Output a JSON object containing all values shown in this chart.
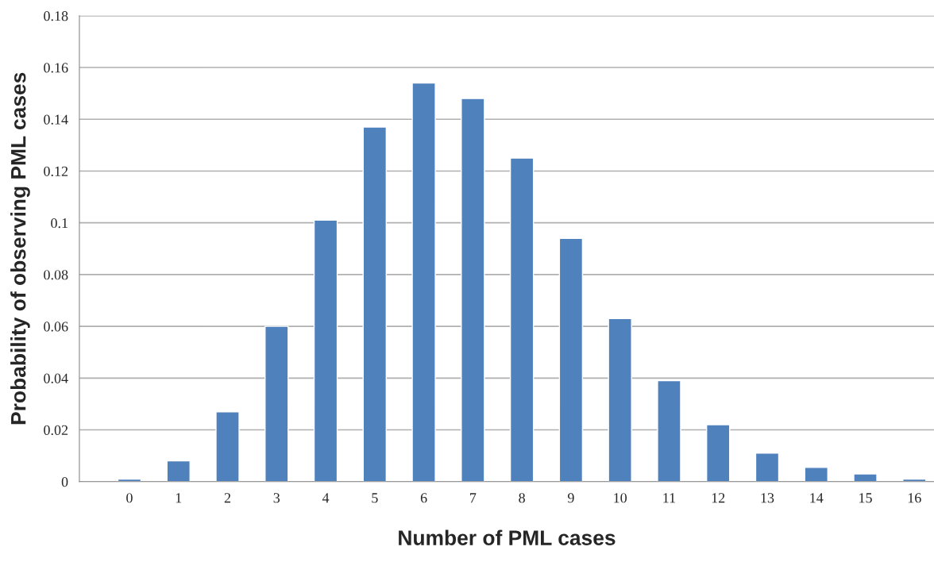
{
  "chart_data": {
    "type": "bar",
    "xlabel": "Number of PML cases",
    "ylabel": "Probability of observing PML cases",
    "categories": [
      "0",
      "1",
      "2",
      "3",
      "4",
      "5",
      "6",
      "7",
      "8",
      "9",
      "10",
      "11",
      "12",
      "13",
      "14",
      "15",
      "16"
    ],
    "values": [
      0.001,
      0.008,
      0.027,
      0.06,
      0.101,
      0.137,
      0.154,
      0.148,
      0.125,
      0.094,
      0.063,
      0.039,
      0.022,
      0.011,
      0.0055,
      0.003,
      0.001
    ],
    "color": "#4f81bd",
    "ylim": [
      0,
      0.18
    ],
    "yticks": [
      0,
      {
        "value": 0.02,
        "label": "0.02"
      },
      {
        "value": 0.04,
        "label": "0.04"
      },
      {
        "value": 0.06,
        "label": "0.06"
      },
      {
        "value": 0.08,
        "label": "0.08"
      },
      {
        "value": 0.1,
        "label": "0.1"
      },
      {
        "value": 0.12,
        "label": "0.12"
      },
      {
        "value": 0.14,
        "label": "0.14"
      },
      {
        "value": 0.16,
        "label": "0.16"
      },
      {
        "value": 0.18,
        "label": "0.18"
      }
    ],
    "grid": "y",
    "legend": false
  }
}
